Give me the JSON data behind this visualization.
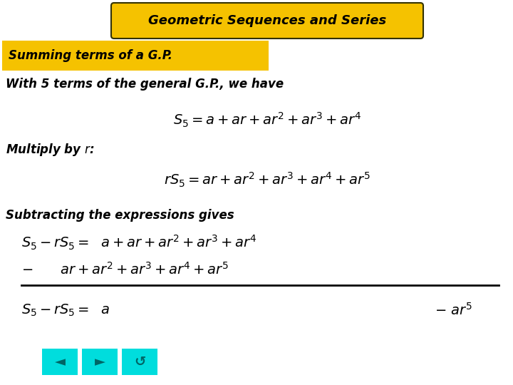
{
  "title": "Geometric Sequences and Series",
  "subtitle": "Summing terms of a G.P.",
  "bg_color": "#FFFFFF",
  "title_box_color": "#F5C200",
  "subtitle_box_color": "#F5C200",
  "title_border_color": "#333300",
  "body_text_color": "#000000",
  "formula_color": "#000000",
  "nav_button_color": "#00DDDD",
  "nav_arrow_color": "#006666",
  "title_fontsize": 13,
  "subtitle_fontsize": 12,
  "body_fontsize": 12,
  "formula_fontsize": 14
}
